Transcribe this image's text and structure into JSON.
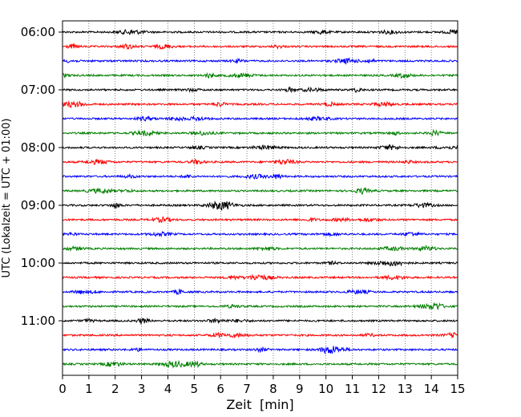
{
  "chart_data": {
    "type": "line",
    "title": "",
    "xlabel": "Zeit  [min]",
    "ylabel": "UTC (Lokalzeit = UTC + 01:00)",
    "xlim": [
      0,
      15
    ],
    "x_ticks": [
      0,
      1,
      2,
      3,
      4,
      5,
      6,
      7,
      8,
      9,
      10,
      11,
      12,
      13,
      14,
      15
    ],
    "y_tick_labels": [
      "06:00",
      "07:00",
      "08:00",
      "09:00",
      "10:00",
      "11:00"
    ],
    "grid": "vertical-dotted",
    "legend": "none",
    "trace_interval_min": 15,
    "traces": [
      {
        "start": "06:00",
        "color": "#000000"
      },
      {
        "start": "06:15",
        "color": "#ff0000"
      },
      {
        "start": "06:30",
        "color": "#0000ff"
      },
      {
        "start": "06:45",
        "color": "#008000"
      },
      {
        "start": "07:00",
        "color": "#000000"
      },
      {
        "start": "07:15",
        "color": "#ff0000"
      },
      {
        "start": "07:30",
        "color": "#0000ff"
      },
      {
        "start": "07:45",
        "color": "#008000"
      },
      {
        "start": "08:00",
        "color": "#000000"
      },
      {
        "start": "08:15",
        "color": "#ff0000"
      },
      {
        "start": "08:30",
        "color": "#0000ff"
      },
      {
        "start": "08:45",
        "color": "#008000"
      },
      {
        "start": "09:00",
        "color": "#000000"
      },
      {
        "start": "09:15",
        "color": "#ff0000"
      },
      {
        "start": "09:30",
        "color": "#0000ff"
      },
      {
        "start": "09:45",
        "color": "#008000"
      },
      {
        "start": "10:00",
        "color": "#000000"
      },
      {
        "start": "10:15",
        "color": "#ff0000"
      },
      {
        "start": "10:30",
        "color": "#0000ff"
      },
      {
        "start": "10:45",
        "color": "#008000"
      },
      {
        "start": "11:00",
        "color": "#000000"
      },
      {
        "start": "11:15",
        "color": "#ff0000"
      },
      {
        "start": "11:30",
        "color": "#0000ff"
      },
      {
        "start": "11:45",
        "color": "#008000"
      }
    ]
  }
}
